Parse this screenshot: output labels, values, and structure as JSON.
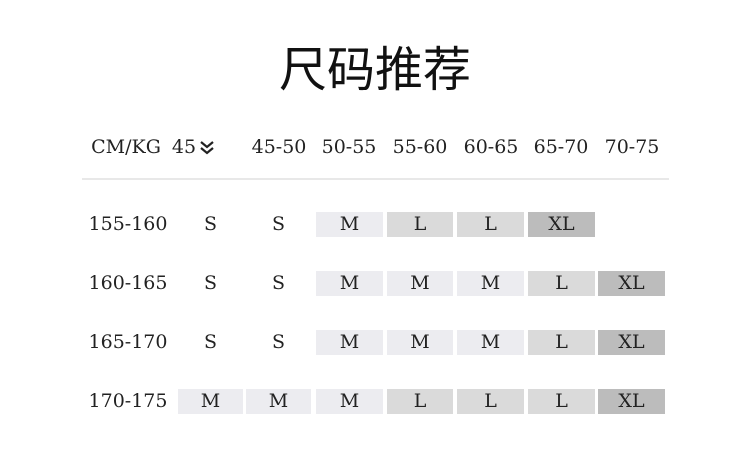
{
  "title": "尺码推荐",
  "header": [
    "CM/KG",
    "45",
    "45-50",
    "50-55",
    "55-60",
    "60-65",
    "65-70",
    "70-75"
  ],
  "header_icon": "double-chevron-down-icon",
  "colors": {
    "M": "#ececf0",
    "L": "#dadada",
    "XL": "#bcbcbc"
  },
  "rows": [
    {
      "height": "155-160",
      "sizes": [
        "S",
        "S",
        "M",
        "L",
        "L",
        "XL",
        ""
      ]
    },
    {
      "height": "160-165",
      "sizes": [
        "S",
        "S",
        "M",
        "M",
        "M",
        "L",
        "XL"
      ]
    },
    {
      "height": "165-170",
      "sizes": [
        "S",
        "S",
        "M",
        "M",
        "M",
        "L",
        "XL"
      ]
    },
    {
      "height": "170-175",
      "sizes": [
        "M",
        "M",
        "M",
        "L",
        "L",
        "L",
        "XL"
      ]
    }
  ]
}
